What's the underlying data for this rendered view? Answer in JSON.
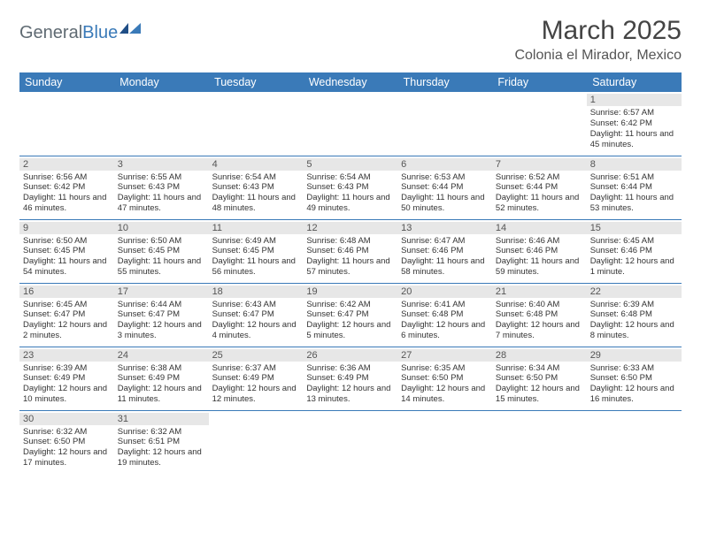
{
  "logo": {
    "text1": "General",
    "text2": "Blue"
  },
  "title": "March 2025",
  "subtitle": "Colonia el Mirador, Mexico",
  "header_bg": "#3a7ab8",
  "day_headers": [
    "Sunday",
    "Monday",
    "Tuesday",
    "Wednesday",
    "Thursday",
    "Friday",
    "Saturday"
  ],
  "weeks": [
    [
      null,
      null,
      null,
      null,
      null,
      null,
      {
        "n": "1",
        "sr": "Sunrise: 6:57 AM",
        "ss": "Sunset: 6:42 PM",
        "dl": "Daylight: 11 hours and 45 minutes."
      }
    ],
    [
      {
        "n": "2",
        "sr": "Sunrise: 6:56 AM",
        "ss": "Sunset: 6:42 PM",
        "dl": "Daylight: 11 hours and 46 minutes."
      },
      {
        "n": "3",
        "sr": "Sunrise: 6:55 AM",
        "ss": "Sunset: 6:43 PM",
        "dl": "Daylight: 11 hours and 47 minutes."
      },
      {
        "n": "4",
        "sr": "Sunrise: 6:54 AM",
        "ss": "Sunset: 6:43 PM",
        "dl": "Daylight: 11 hours and 48 minutes."
      },
      {
        "n": "5",
        "sr": "Sunrise: 6:54 AM",
        "ss": "Sunset: 6:43 PM",
        "dl": "Daylight: 11 hours and 49 minutes."
      },
      {
        "n": "6",
        "sr": "Sunrise: 6:53 AM",
        "ss": "Sunset: 6:44 PM",
        "dl": "Daylight: 11 hours and 50 minutes."
      },
      {
        "n": "7",
        "sr": "Sunrise: 6:52 AM",
        "ss": "Sunset: 6:44 PM",
        "dl": "Daylight: 11 hours and 52 minutes."
      },
      {
        "n": "8",
        "sr": "Sunrise: 6:51 AM",
        "ss": "Sunset: 6:44 PM",
        "dl": "Daylight: 11 hours and 53 minutes."
      }
    ],
    [
      {
        "n": "9",
        "sr": "Sunrise: 6:50 AM",
        "ss": "Sunset: 6:45 PM",
        "dl": "Daylight: 11 hours and 54 minutes."
      },
      {
        "n": "10",
        "sr": "Sunrise: 6:50 AM",
        "ss": "Sunset: 6:45 PM",
        "dl": "Daylight: 11 hours and 55 minutes."
      },
      {
        "n": "11",
        "sr": "Sunrise: 6:49 AM",
        "ss": "Sunset: 6:45 PM",
        "dl": "Daylight: 11 hours and 56 minutes."
      },
      {
        "n": "12",
        "sr": "Sunrise: 6:48 AM",
        "ss": "Sunset: 6:46 PM",
        "dl": "Daylight: 11 hours and 57 minutes."
      },
      {
        "n": "13",
        "sr": "Sunrise: 6:47 AM",
        "ss": "Sunset: 6:46 PM",
        "dl": "Daylight: 11 hours and 58 minutes."
      },
      {
        "n": "14",
        "sr": "Sunrise: 6:46 AM",
        "ss": "Sunset: 6:46 PM",
        "dl": "Daylight: 11 hours and 59 minutes."
      },
      {
        "n": "15",
        "sr": "Sunrise: 6:45 AM",
        "ss": "Sunset: 6:46 PM",
        "dl": "Daylight: 12 hours and 1 minute."
      }
    ],
    [
      {
        "n": "16",
        "sr": "Sunrise: 6:45 AM",
        "ss": "Sunset: 6:47 PM",
        "dl": "Daylight: 12 hours and 2 minutes."
      },
      {
        "n": "17",
        "sr": "Sunrise: 6:44 AM",
        "ss": "Sunset: 6:47 PM",
        "dl": "Daylight: 12 hours and 3 minutes."
      },
      {
        "n": "18",
        "sr": "Sunrise: 6:43 AM",
        "ss": "Sunset: 6:47 PM",
        "dl": "Daylight: 12 hours and 4 minutes."
      },
      {
        "n": "19",
        "sr": "Sunrise: 6:42 AM",
        "ss": "Sunset: 6:47 PM",
        "dl": "Daylight: 12 hours and 5 minutes."
      },
      {
        "n": "20",
        "sr": "Sunrise: 6:41 AM",
        "ss": "Sunset: 6:48 PM",
        "dl": "Daylight: 12 hours and 6 minutes."
      },
      {
        "n": "21",
        "sr": "Sunrise: 6:40 AM",
        "ss": "Sunset: 6:48 PM",
        "dl": "Daylight: 12 hours and 7 minutes."
      },
      {
        "n": "22",
        "sr": "Sunrise: 6:39 AM",
        "ss": "Sunset: 6:48 PM",
        "dl": "Daylight: 12 hours and 8 minutes."
      }
    ],
    [
      {
        "n": "23",
        "sr": "Sunrise: 6:39 AM",
        "ss": "Sunset: 6:49 PM",
        "dl": "Daylight: 12 hours and 10 minutes."
      },
      {
        "n": "24",
        "sr": "Sunrise: 6:38 AM",
        "ss": "Sunset: 6:49 PM",
        "dl": "Daylight: 12 hours and 11 minutes."
      },
      {
        "n": "25",
        "sr": "Sunrise: 6:37 AM",
        "ss": "Sunset: 6:49 PM",
        "dl": "Daylight: 12 hours and 12 minutes."
      },
      {
        "n": "26",
        "sr": "Sunrise: 6:36 AM",
        "ss": "Sunset: 6:49 PM",
        "dl": "Daylight: 12 hours and 13 minutes."
      },
      {
        "n": "27",
        "sr": "Sunrise: 6:35 AM",
        "ss": "Sunset: 6:50 PM",
        "dl": "Daylight: 12 hours and 14 minutes."
      },
      {
        "n": "28",
        "sr": "Sunrise: 6:34 AM",
        "ss": "Sunset: 6:50 PM",
        "dl": "Daylight: 12 hours and 15 minutes."
      },
      {
        "n": "29",
        "sr": "Sunrise: 6:33 AM",
        "ss": "Sunset: 6:50 PM",
        "dl": "Daylight: 12 hours and 16 minutes."
      }
    ],
    [
      {
        "n": "30",
        "sr": "Sunrise: 6:32 AM",
        "ss": "Sunset: 6:50 PM",
        "dl": "Daylight: 12 hours and 17 minutes."
      },
      {
        "n": "31",
        "sr": "Sunrise: 6:32 AM",
        "ss": "Sunset: 6:51 PM",
        "dl": "Daylight: 12 hours and 19 minutes."
      },
      null,
      null,
      null,
      null,
      null
    ]
  ]
}
